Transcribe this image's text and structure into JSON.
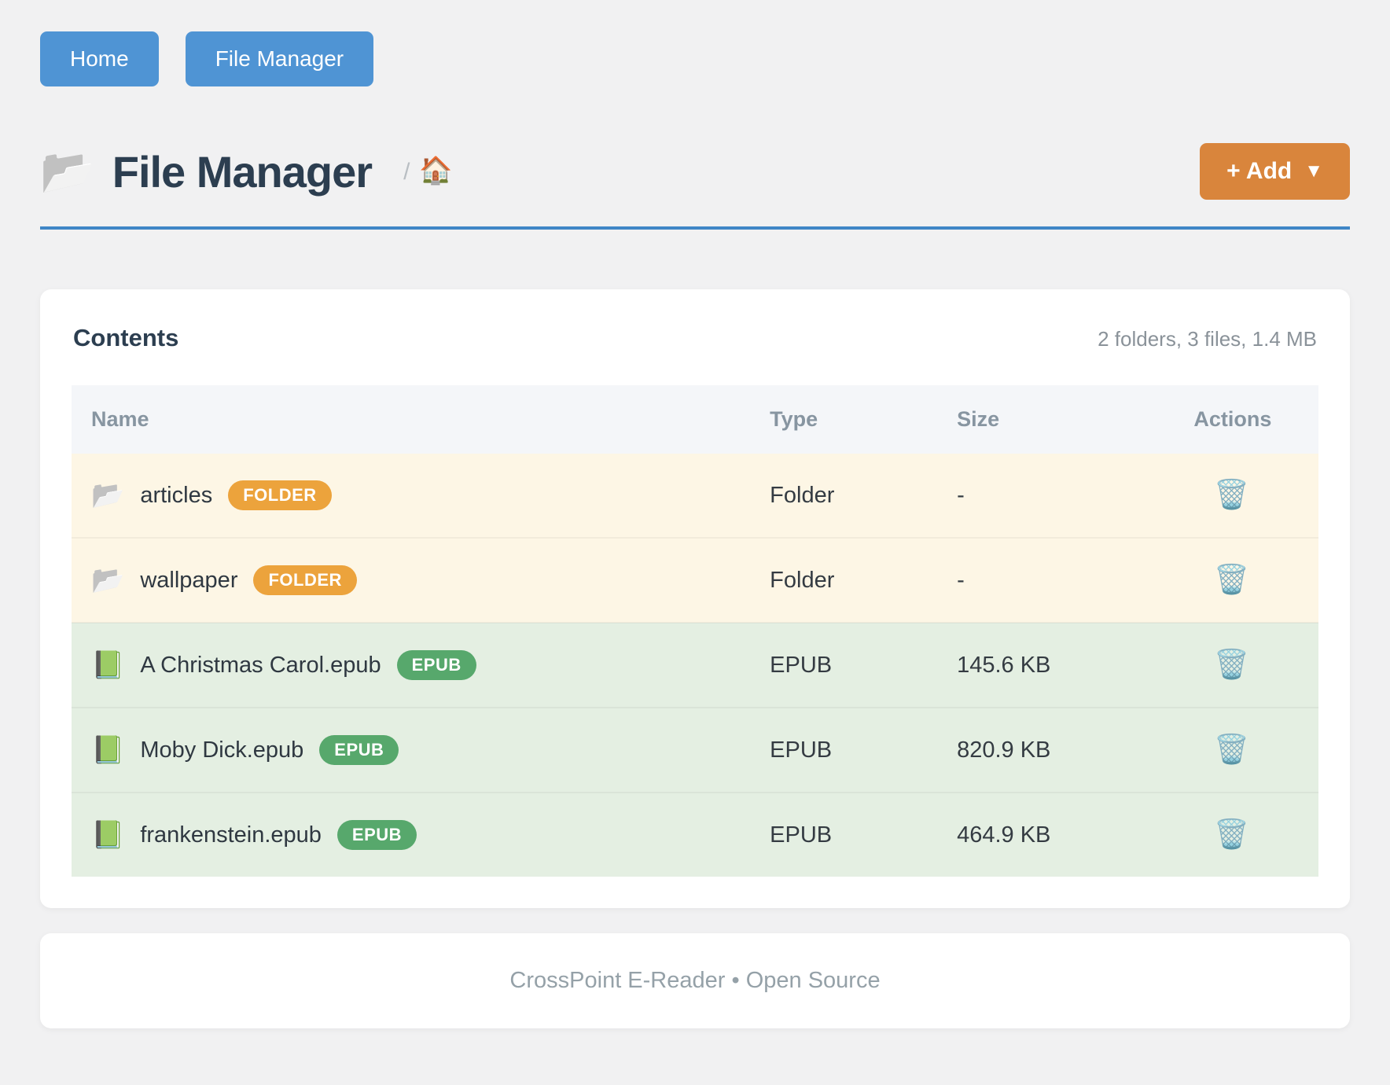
{
  "nav": {
    "home_label": "Home",
    "file_manager_label": "File Manager"
  },
  "header": {
    "title": "File Manager",
    "breadcrumb_separator": "/",
    "add_button_label": "+ Add",
    "add_button_caret": "▼"
  },
  "icons": {
    "folder": "📂",
    "house": "🏠",
    "book": "📗",
    "trash": "🗑️"
  },
  "contents": {
    "heading": "Contents",
    "summary": "2 folders, 3 files, 1.4 MB",
    "columns": [
      "Name",
      "Type",
      "Size",
      "Actions"
    ],
    "rows": [
      {
        "name": "articles",
        "badge": "FOLDER",
        "type": "Folder",
        "size": "-"
      },
      {
        "name": "wallpaper",
        "badge": "FOLDER",
        "type": "Folder",
        "size": "-"
      },
      {
        "name": "A Christmas Carol.epub",
        "badge": "EPUB",
        "type": "EPUB",
        "size": "145.6 KB"
      },
      {
        "name": "Moby Dick.epub",
        "badge": "EPUB",
        "type": "EPUB",
        "size": "820.9 KB"
      },
      {
        "name": "frankenstein.epub",
        "badge": "EPUB",
        "type": "EPUB",
        "size": "464.9 KB"
      }
    ]
  },
  "footer": {
    "text": "CrossPoint E-Reader • Open Source"
  },
  "colors": {
    "nav_button": "#4f94d4",
    "add_button": "#d9853c",
    "title_rule": "#3f86c6",
    "folder_badge": "#eca33c",
    "epub_badge": "#57a86c",
    "folder_row_bg": "#fdf6e5",
    "epub_row_bg": "#e4efe2",
    "page_bg": "#f1f1f2"
  }
}
